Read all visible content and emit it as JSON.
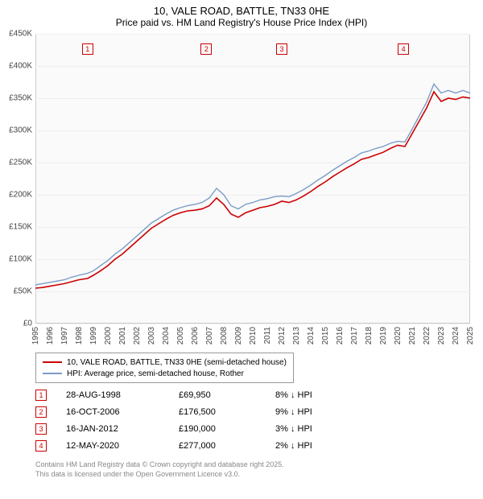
{
  "title": {
    "line1": "10, VALE ROAD, BATTLE, TN33 0HE",
    "line2": "Price paid vs. HM Land Registry's House Price Index (HPI)"
  },
  "chart": {
    "type": "line",
    "background_color": "#fafafa",
    "grid_color": "#eeeeee",
    "border_color": "#cccccc",
    "ylim": [
      0,
      450000
    ],
    "ytick_step": 50000,
    "yticks": [
      "£0",
      "£50K",
      "£100K",
      "£150K",
      "£200K",
      "£250K",
      "£300K",
      "£350K",
      "£400K",
      "£450K"
    ],
    "xlim": [
      1995,
      2025
    ],
    "xticks": [
      "1995",
      "1996",
      "1997",
      "1998",
      "1999",
      "2000",
      "2001",
      "2002",
      "2003",
      "2004",
      "2005",
      "2006",
      "2007",
      "2008",
      "2009",
      "2010",
      "2011",
      "2012",
      "2013",
      "2014",
      "2015",
      "2016",
      "2017",
      "2018",
      "2019",
      "2020",
      "2021",
      "2022",
      "2023",
      "2024",
      "2025"
    ],
    "series": [
      {
        "name": "price_paid",
        "color": "#cc0000",
        "line_width": 1.6,
        "points": [
          [
            1995,
            55
          ],
          [
            1995.5,
            56
          ],
          [
            1996,
            58
          ],
          [
            1996.5,
            60
          ],
          [
            1997,
            62
          ],
          [
            1997.5,
            65
          ],
          [
            1998,
            68
          ],
          [
            1998.6,
            70
          ],
          [
            1999,
            75
          ],
          [
            1999.5,
            82
          ],
          [
            2000,
            90
          ],
          [
            2000.5,
            100
          ],
          [
            2001,
            108
          ],
          [
            2001.5,
            118
          ],
          [
            2002,
            128
          ],
          [
            2002.5,
            138
          ],
          [
            2003,
            148
          ],
          [
            2003.5,
            155
          ],
          [
            2004,
            162
          ],
          [
            2004.5,
            168
          ],
          [
            2005,
            172
          ],
          [
            2005.5,
            175
          ],
          [
            2006,
            176
          ],
          [
            2006.5,
            178
          ],
          [
            2007,
            183
          ],
          [
            2007.5,
            195
          ],
          [
            2008,
            185
          ],
          [
            2008.5,
            170
          ],
          [
            2009,
            165
          ],
          [
            2009.5,
            172
          ],
          [
            2010,
            176
          ],
          [
            2010.5,
            180
          ],
          [
            2011,
            182
          ],
          [
            2011.5,
            185
          ],
          [
            2012,
            190
          ],
          [
            2012.5,
            188
          ],
          [
            2013,
            192
          ],
          [
            2013.5,
            198
          ],
          [
            2014,
            205
          ],
          [
            2014.5,
            213
          ],
          [
            2015,
            220
          ],
          [
            2015.5,
            228
          ],
          [
            2016,
            235
          ],
          [
            2016.5,
            242
          ],
          [
            2017,
            248
          ],
          [
            2017.5,
            255
          ],
          [
            2018,
            258
          ],
          [
            2018.5,
            262
          ],
          [
            2019,
            266
          ],
          [
            2019.5,
            272
          ],
          [
            2020,
            277
          ],
          [
            2020.5,
            275
          ],
          [
            2021,
            295
          ],
          [
            2021.5,
            315
          ],
          [
            2022,
            335
          ],
          [
            2022.5,
            360
          ],
          [
            2023,
            345
          ],
          [
            2023.5,
            350
          ],
          [
            2024,
            348
          ],
          [
            2024.5,
            352
          ],
          [
            2025,
            350
          ]
        ]
      },
      {
        "name": "hpi",
        "color": "#7a9cc6",
        "line_width": 1.4,
        "points": [
          [
            1995,
            60
          ],
          [
            1995.5,
            62
          ],
          [
            1996,
            64
          ],
          [
            1996.5,
            66
          ],
          [
            1997,
            68
          ],
          [
            1997.5,
            72
          ],
          [
            1998,
            75
          ],
          [
            1998.6,
            78
          ],
          [
            1999,
            82
          ],
          [
            1999.5,
            90
          ],
          [
            2000,
            98
          ],
          [
            2000.5,
            108
          ],
          [
            2001,
            116
          ],
          [
            2001.5,
            126
          ],
          [
            2002,
            136
          ],
          [
            2002.5,
            146
          ],
          [
            2003,
            156
          ],
          [
            2003.5,
            163
          ],
          [
            2004,
            170
          ],
          [
            2004.5,
            176
          ],
          [
            2005,
            180
          ],
          [
            2005.5,
            183
          ],
          [
            2006,
            185
          ],
          [
            2006.5,
            188
          ],
          [
            2007,
            195
          ],
          [
            2007.5,
            210
          ],
          [
            2008,
            200
          ],
          [
            2008.5,
            183
          ],
          [
            2009,
            178
          ],
          [
            2009.5,
            185
          ],
          [
            2010,
            188
          ],
          [
            2010.5,
            192
          ],
          [
            2011,
            194
          ],
          [
            2011.5,
            197
          ],
          [
            2012,
            198
          ],
          [
            2012.5,
            197
          ],
          [
            2013,
            202
          ],
          [
            2013.5,
            208
          ],
          [
            2014,
            215
          ],
          [
            2014.5,
            223
          ],
          [
            2015,
            230
          ],
          [
            2015.5,
            238
          ],
          [
            2016,
            245
          ],
          [
            2016.5,
            252
          ],
          [
            2017,
            258
          ],
          [
            2017.5,
            265
          ],
          [
            2018,
            268
          ],
          [
            2018.5,
            272
          ],
          [
            2019,
            275
          ],
          [
            2019.5,
            280
          ],
          [
            2020,
            283
          ],
          [
            2020.5,
            282
          ],
          [
            2021,
            302
          ],
          [
            2021.5,
            323
          ],
          [
            2022,
            344
          ],
          [
            2022.5,
            372
          ],
          [
            2023,
            358
          ],
          [
            2023.5,
            362
          ],
          [
            2024,
            358
          ],
          [
            2024.5,
            362
          ],
          [
            2025,
            358
          ]
        ]
      }
    ],
    "markers": [
      {
        "num": "1",
        "x": 1998.6
      },
      {
        "num": "2",
        "x": 2006.8
      },
      {
        "num": "3",
        "x": 2012.0
      },
      {
        "num": "4",
        "x": 2020.4
      }
    ]
  },
  "legend": {
    "items": [
      {
        "color": "#cc0000",
        "label": "10, VALE ROAD, BATTLE, TN33 0HE (semi-detached house)"
      },
      {
        "color": "#7a9cc6",
        "label": "HPI: Average price, semi-detached house, Rother"
      }
    ]
  },
  "sales": [
    {
      "num": "1",
      "date": "28-AUG-1998",
      "price": "£69,950",
      "pct": "8%",
      "dir": "↓",
      "tag": "HPI"
    },
    {
      "num": "2",
      "date": "16-OCT-2006",
      "price": "£176,500",
      "pct": "9%",
      "dir": "↓",
      "tag": "HPI"
    },
    {
      "num": "3",
      "date": "16-JAN-2012",
      "price": "£190,000",
      "pct": "3%",
      "dir": "↓",
      "tag": "HPI"
    },
    {
      "num": "4",
      "date": "12-MAY-2020",
      "price": "£277,000",
      "pct": "2%",
      "dir": "↓",
      "tag": "HPI"
    }
  ],
  "footer": {
    "line1": "Contains HM Land Registry data © Crown copyright and database right 2025.",
    "line2": "This data is licensed under the Open Government Licence v3.0."
  }
}
